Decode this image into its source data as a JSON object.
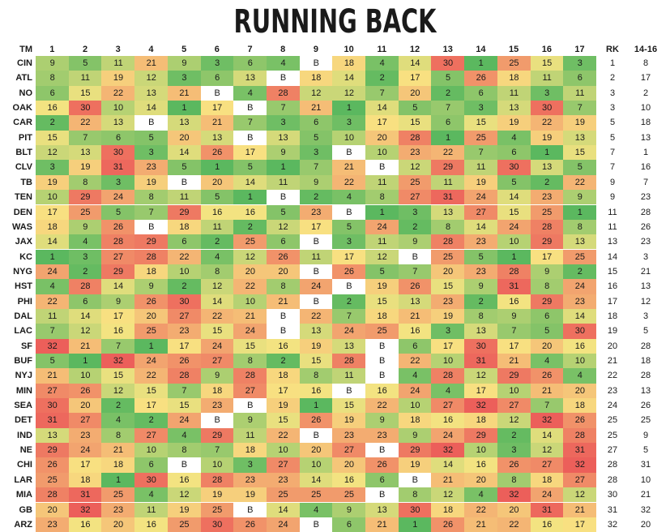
{
  "chart_data": {
    "type": "heatmap",
    "title": "RUNNING BACK",
    "columns": [
      "TM",
      "1",
      "2",
      "3",
      "4",
      "5",
      "6",
      "7",
      "8",
      "9",
      "10",
      "11",
      "12",
      "13",
      "14",
      "15",
      "16",
      "17",
      "RK",
      "14-16"
    ],
    "rows": [
      {
        "team": "CIN",
        "weeks": [
          "9",
          "5",
          "11",
          "21",
          "9",
          "3",
          "6",
          "4",
          "B",
          "18",
          "4",
          "14",
          "30",
          "1",
          "25",
          "15",
          "3"
        ],
        "rk": "1",
        "r1416": "8"
      },
      {
        "team": "ATL",
        "weeks": [
          "8",
          "11",
          "19",
          "12",
          "3",
          "6",
          "13",
          "B",
          "18",
          "14",
          "2",
          "17",
          "5",
          "26",
          "18",
          "11",
          "6"
        ],
        "rk": "2",
        "r1416": "17"
      },
      {
        "team": "NO",
        "weeks": [
          "6",
          "15",
          "22",
          "13",
          "21",
          "B",
          "4",
          "28",
          "12",
          "12",
          "7",
          "20",
          "2",
          "6",
          "11",
          "3",
          "11"
        ],
        "rk": "3",
        "r1416": "2"
      },
      {
        "team": "OAK",
        "weeks": [
          "16",
          "30",
          "10",
          "14",
          "1",
          "17",
          "B",
          "7",
          "21",
          "1",
          "14",
          "5",
          "7",
          "3",
          "13",
          "30",
          "7"
        ],
        "rk": "3",
        "r1416": "10"
      },
      {
        "team": "CAR",
        "weeks": [
          "2",
          "22",
          "13",
          "B",
          "13",
          "21",
          "7",
          "3",
          "6",
          "3",
          "17",
          "15",
          "6",
          "15",
          "19",
          "22",
          "19"
        ],
        "rk": "5",
        "r1416": "18"
      },
      {
        "team": "PIT",
        "weeks": [
          "15",
          "7",
          "6",
          "5",
          "20",
          "13",
          "B",
          "13",
          "5",
          "10",
          "20",
          "28",
          "1",
          "25",
          "4",
          "19",
          "13"
        ],
        "rk": "5",
        "r1416": "13"
      },
      {
        "team": "BLT",
        "weeks": [
          "12",
          "13",
          "30",
          "3",
          "14",
          "26",
          "17",
          "9",
          "3",
          "B",
          "10",
          "23",
          "22",
          "7",
          "6",
          "1",
          "15"
        ],
        "rk": "7",
        "r1416": "1"
      },
      {
        "team": "CLV",
        "weeks": [
          "3",
          "19",
          "31",
          "23",
          "5",
          "1",
          "5",
          "1",
          "7",
          "21",
          "B",
          "12",
          "29",
          "11",
          "30",
          "13",
          "5"
        ],
        "rk": "7",
        "r1416": "16"
      },
      {
        "team": "TB",
        "weeks": [
          "19",
          "8",
          "3",
          "19",
          "B",
          "20",
          "14",
          "11",
          "9",
          "22",
          "11",
          "25",
          "11",
          "19",
          "5",
          "2",
          "22"
        ],
        "rk": "9",
        "r1416": "7"
      },
      {
        "team": "TEN",
        "weeks": [
          "10",
          "29",
          "24",
          "8",
          "11",
          "5",
          "1",
          "B",
          "2",
          "4",
          "8",
          "27",
          "31",
          "24",
          "14",
          "23",
          "9"
        ],
        "rk": "9",
        "r1416": "23"
      },
      {
        "team": "DEN",
        "weeks": [
          "17",
          "25",
          "5",
          "7",
          "29",
          "16",
          "16",
          "5",
          "23",
          "B",
          "1",
          "3",
          "13",
          "27",
          "15",
          "25",
          "1"
        ],
        "rk": "11",
        "r1416": "28"
      },
      {
        "team": "WAS",
        "weeks": [
          "18",
          "9",
          "26",
          "B",
          "18",
          "11",
          "2",
          "12",
          "17",
          "5",
          "24",
          "2",
          "8",
          "14",
          "24",
          "28",
          "8"
        ],
        "rk": "11",
        "r1416": "26"
      },
      {
        "team": "JAX",
        "weeks": [
          "14",
          "4",
          "28",
          "29",
          "6",
          "2",
          "25",
          "6",
          "B",
          "3",
          "11",
          "9",
          "28",
          "23",
          "10",
          "29",
          "13"
        ],
        "rk": "13",
        "r1416": "23"
      },
      {
        "team": "KC",
        "weeks": [
          "1",
          "3",
          "27",
          "28",
          "22",
          "4",
          "12",
          "26",
          "11",
          "17",
          "12",
          "B",
          "25",
          "5",
          "1",
          "17",
          "25"
        ],
        "rk": "14",
        "r1416": "3"
      },
      {
        "team": "NYG",
        "weeks": [
          "24",
          "2",
          "29",
          "18",
          "10",
          "8",
          "20",
          "20",
          "B",
          "26",
          "5",
          "7",
          "20",
          "23",
          "28",
          "9",
          "2"
        ],
        "rk": "15",
        "r1416": "21"
      },
      {
        "team": "HST",
        "weeks": [
          "4",
          "28",
          "14",
          "9",
          "2",
          "12",
          "22",
          "8",
          "24",
          "B",
          "19",
          "26",
          "15",
          "9",
          "31",
          "8",
          "24"
        ],
        "rk": "16",
        "r1416": "13"
      },
      {
        "team": "PHI",
        "weeks": [
          "22",
          "6",
          "9",
          "26",
          "30",
          "14",
          "10",
          "21",
          "B",
          "2",
          "15",
          "13",
          "23",
          "2",
          "16",
          "29",
          "23"
        ],
        "rk": "17",
        "r1416": "12"
      },
      {
        "team": "DAL",
        "weeks": [
          "11",
          "14",
          "17",
          "20",
          "27",
          "22",
          "21",
          "B",
          "22",
          "7",
          "18",
          "21",
          "19",
          "8",
          "9",
          "6",
          "14"
        ],
        "rk": "18",
        "r1416": "3"
      },
      {
        "team": "LAC",
        "weeks": [
          "7",
          "12",
          "16",
          "25",
          "23",
          "15",
          "24",
          "B",
          "13",
          "24",
          "25",
          "16",
          "3",
          "13",
          "7",
          "5",
          "30"
        ],
        "rk": "19",
        "r1416": "5"
      },
      {
        "team": "SF",
        "weeks": [
          "32",
          "21",
          "7",
          "1",
          "17",
          "24",
          "15",
          "16",
          "19",
          "13",
          "B",
          "6",
          "17",
          "30",
          "17",
          "20",
          "16"
        ],
        "rk": "20",
        "r1416": "28"
      },
      {
        "team": "BUF",
        "weeks": [
          "5",
          "1",
          "32",
          "24",
          "26",
          "27",
          "8",
          "2",
          "15",
          "28",
          "B",
          "22",
          "10",
          "31",
          "21",
          "4",
          "10"
        ],
        "rk": "21",
        "r1416": "18"
      },
      {
        "team": "NYJ",
        "weeks": [
          "21",
          "10",
          "15",
          "22",
          "28",
          "9",
          "28",
          "18",
          "8",
          "11",
          "B",
          "4",
          "28",
          "12",
          "29",
          "26",
          "4"
        ],
        "rk": "22",
        "r1416": "28"
      },
      {
        "team": "MIN",
        "weeks": [
          "27",
          "26",
          "12",
          "15",
          "7",
          "18",
          "27",
          "17",
          "16",
          "B",
          "16",
          "24",
          "4",
          "17",
          "10",
          "21",
          "20"
        ],
        "rk": "23",
        "r1416": "13"
      },
      {
        "team": "SEA",
        "weeks": [
          "30",
          "20",
          "2",
          "17",
          "15",
          "23",
          "B",
          "19",
          "1",
          "15",
          "22",
          "10",
          "27",
          "32",
          "27",
          "7",
          "18"
        ],
        "rk": "24",
        "r1416": "26"
      },
      {
        "team": "DET",
        "weeks": [
          "31",
          "27",
          "4",
          "2",
          "24",
          "B",
          "9",
          "15",
          "26",
          "19",
          "9",
          "18",
          "16",
          "18",
          "12",
          "32",
          "26"
        ],
        "rk": "25",
        "r1416": "25"
      },
      {
        "team": "IND",
        "weeks": [
          "13",
          "23",
          "8",
          "27",
          "4",
          "29",
          "11",
          "22",
          "B",
          "23",
          "23",
          "9",
          "24",
          "29",
          "2",
          "14",
          "28"
        ],
        "rk": "25",
        "r1416": "9"
      },
      {
        "team": "NE",
        "weeks": [
          "29",
          "24",
          "21",
          "10",
          "8",
          "7",
          "18",
          "10",
          "20",
          "27",
          "B",
          "29",
          "32",
          "10",
          "3",
          "12",
          "31"
        ],
        "rk": "27",
        "r1416": "5"
      },
      {
        "team": "CHI",
        "weeks": [
          "26",
          "17",
          "18",
          "6",
          "B",
          "10",
          "3",
          "27",
          "10",
          "20",
          "26",
          "19",
          "14",
          "16",
          "26",
          "27",
          "32"
        ],
        "rk": "28",
        "r1416": "31"
      },
      {
        "team": "LAR",
        "weeks": [
          "25",
          "18",
          "1",
          "30",
          "16",
          "28",
          "23",
          "23",
          "14",
          "16",
          "6",
          "B",
          "21",
          "20",
          "8",
          "18",
          "27"
        ],
        "rk": "28",
        "r1416": "10"
      },
      {
        "team": "MIA",
        "weeks": [
          "28",
          "31",
          "25",
          "4",
          "12",
          "19",
          "19",
          "25",
          "25",
          "25",
          "B",
          "8",
          "12",
          "4",
          "32",
          "24",
          "12"
        ],
        "rk": "30",
        "r1416": "21"
      },
      {
        "team": "GB",
        "weeks": [
          "20",
          "32",
          "23",
          "11",
          "19",
          "25",
          "B",
          "14",
          "4",
          "9",
          "13",
          "30",
          "18",
          "22",
          "20",
          "31",
          "21"
        ],
        "rk": "31",
        "r1416": "32"
      },
      {
        "team": "ARZ",
        "weeks": [
          "23",
          "16",
          "20",
          "16",
          "25",
          "30",
          "26",
          "24",
          "B",
          "6",
          "21",
          "1",
          "26",
          "21",
          "22",
          "16",
          "17"
        ],
        "rk": "32",
        "r1416": "20"
      }
    ],
    "bye_label": "B",
    "color_scale": {
      "low": "#5bb85f",
      "mid": "#f8e482",
      "high": "#ec5f5a",
      "bye": "#ffffff"
    },
    "value_range": [
      1,
      32
    ]
  }
}
